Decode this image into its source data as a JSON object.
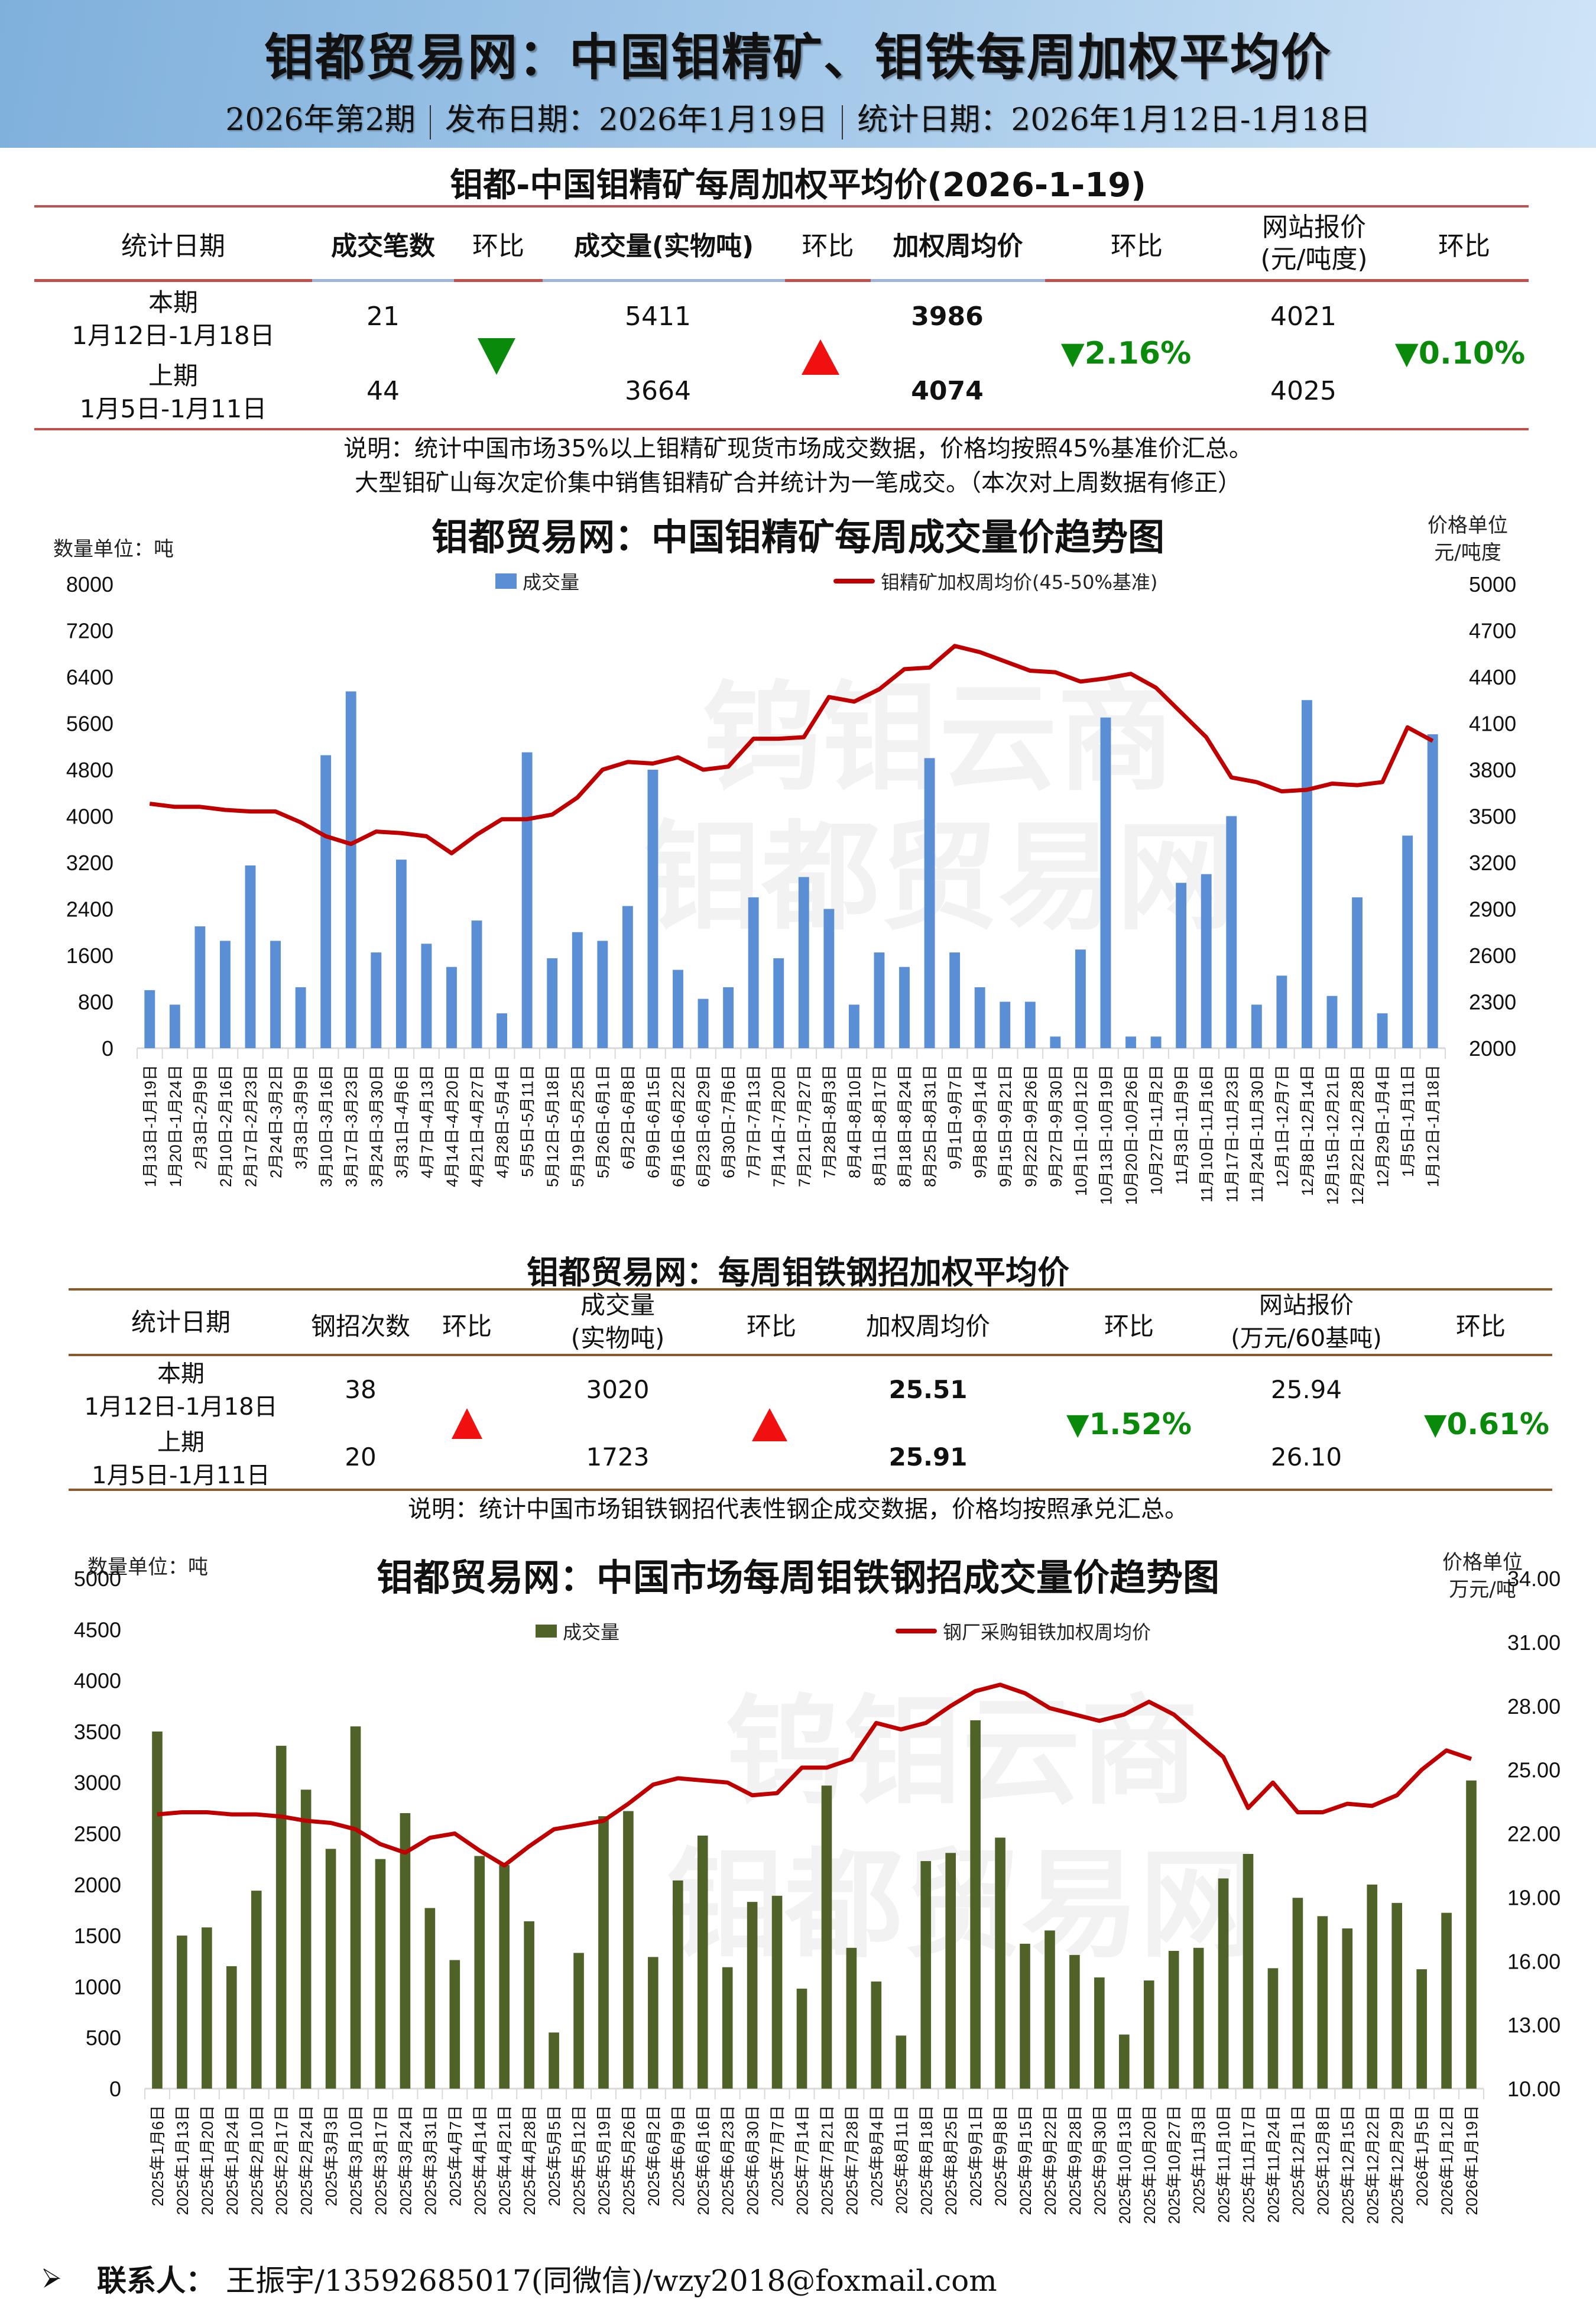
{
  "header": {
    "title": "钼都贸易网：中国钼精矿、钼铁每周加权平均价",
    "issue": "2026年第2期",
    "publish_date": "发布日期：2026年1月19日",
    "stat_date": "统计日期：2026年1月12日-1月18日"
  },
  "table1": {
    "title": "钼都-中国钼精矿每周加权平均价(2026-1-19)",
    "headers": [
      "统计日期",
      "成交笔数",
      "环比",
      "成交量(实物吨)",
      "环比",
      "加权周均价",
      "环比",
      "网站报价",
      "(元/吨度)",
      "环比"
    ],
    "current": {
      "label": "本期",
      "range": "1月12日-1月18日",
      "count": "21",
      "volume": "5411",
      "avg_price": "3986",
      "site_price": "4021"
    },
    "previous": {
      "label": "上期",
      "range": "1月5日-1月11日",
      "count": "44",
      "volume": "3664",
      "avg_price": "4074",
      "site_price": "4025"
    },
    "count_change": "down",
    "volume_change": "up",
    "price_change": "▼2.16%",
    "site_change": "▼0.10%",
    "note1": "说明：统计中国市场35%以上钼精矿现货市场成交数据，价格均按照45%基准价汇总。",
    "note2": "大型钼矿山每次定价集中销售钼精矿合并统计为一笔成交。（本次对上周数据有修正）"
  },
  "chart1": {
    "title": "钼都贸易网：中国钼精矿每周成交量价趋势图",
    "left_unit": "数量单位：吨",
    "right_unit_1": "价格单位",
    "right_unit_2": "元/吨度",
    "legend_bar": "成交量",
    "legend_line": "钼精矿加权周均价(45-50%基准)",
    "bar_color": "#5a8fd6",
    "line_color": "#c00000"
  },
  "table2": {
    "title": "钼都贸易网：每周钼铁钢招加权平均价",
    "headers": [
      "统计日期",
      "钢招次数",
      "环比",
      "成交量",
      "(实物吨)",
      "环比",
      "加权周均价",
      "环比",
      "网站报价",
      "(万元/60基吨)",
      "环比"
    ],
    "current": {
      "label": "本期",
      "range": "1月12日-1月18日",
      "count": "38",
      "volume": "3020",
      "avg_price": "25.51",
      "site_price": "25.94"
    },
    "previous": {
      "label": "上期",
      "range": "1月5日-1月11日",
      "count": "20",
      "volume": "1723",
      "avg_price": "25.91",
      "site_price": "26.10"
    },
    "count_change": "up",
    "volume_change": "up",
    "price_change": "▼1.52%",
    "site_change": "▼0.61%",
    "note": "说明：统计中国市场钼铁钢招代表性钢企成交数据，价格均按照承兑汇总。"
  },
  "chart2": {
    "title": "钼都贸易网：中国市场每周钼铁钢招成交量价趋势图",
    "left_unit": "数量单位：吨",
    "right_unit_1": "价格单位",
    "right_unit_2": "万元/吨",
    "legend_bar": "成交量",
    "legend_line": "钢厂采购钼铁加权周均价",
    "bar_color": "#4f6228",
    "line_color": "#c00000"
  },
  "footer": {
    "label": "联系人：",
    "contact": "王振宇/13592685017(同微信)/wzy2018@foxmail.com"
  },
  "chart_data": [
    {
      "type": "bar+line",
      "title": "钼都贸易网：中国钼精矿每周成交量价趋势图",
      "xlabel": "",
      "ylabel": "数量单位：吨",
      "y2label": "价格单位 元/吨度",
      "ylim": [
        0,
        8000
      ],
      "y2lim": [
        2000,
        5000
      ],
      "yticks": [
        0,
        800,
        1600,
        2400,
        3200,
        4000,
        4800,
        5600,
        6400,
        7200,
        8000
      ],
      "y2ticks": [
        2000,
        2300,
        2600,
        2900,
        3200,
        3500,
        3800,
        4100,
        4400,
        4700,
        5000
      ],
      "legend_position": "top",
      "categories": [
        "1月13日-1月19日",
        "1月20日-1月24日",
        "2月3日-2月9日",
        "2月10日-2月16日",
        "2月17日-2月23日",
        "2月24日-3月2日",
        "3月3日-3月9日",
        "3月10日-3月16日",
        "3月17日-3月23日",
        "3月24日-3月30日",
        "3月31日-4月6日",
        "4月7日-4月13日",
        "4月14日-4月20日",
        "4月21日-4月27日",
        "4月28日-5月4日",
        "5月5日-5月11日",
        "5月12日-5月18日",
        "5月19日-5月25日",
        "5月26日-6月1日",
        "6月2日-6月8日",
        "6月9日-6月15日",
        "6月16日-6月22日",
        "6月23日-6月29日",
        "6月30日-7月6日",
        "7月7日-7月13日",
        "7月14日-7月20日",
        "7月21日-7月27日",
        "7月28日-8月3日",
        "8月4日-8月10日",
        "8月11日-8月17日",
        "8月18日-8月24日",
        "8月25日-8月31日",
        "9月1日-9月7日",
        "9月8日-9月14日",
        "9月15日-9月21日",
        "9月22日-9月26日",
        "9月27日-9月30日",
        "10月1日-10月12日",
        "10月13日-10月19日",
        "10月20日-10月26日",
        "10月27日-11月2日",
        "11月3日-11月9日",
        "11月10日-11月16日",
        "11月17日-11月23日",
        "11月24日-11月30日",
        "12月1日-12月7日",
        "12月8日-12月14日",
        "12月15日-12月21日",
        "12月22日-12月28日",
        "12月29日-1月4日",
        "1月5日-1月11日",
        "1月12日-1月18日"
      ],
      "series": [
        {
          "name": "成交量",
          "type": "bar",
          "axis": "left",
          "values": [
            1000,
            750,
            2100,
            1850,
            3150,
            1850,
            1050,
            5050,
            6150,
            1650,
            3250,
            1800,
            1400,
            2200,
            600,
            5100,
            1550,
            2000,
            1850,
            2450,
            4800,
            1350,
            850,
            1050,
            2600,
            1550,
            2950,
            2400,
            750,
            1650,
            1400,
            5000,
            1650,
            1050,
            800,
            800,
            200,
            1700,
            5700,
            200,
            200,
            2850,
            3000,
            4000,
            750,
            1250,
            6000,
            900,
            2600,
            600,
            3664,
            5411
          ]
        },
        {
          "name": "钼精矿加权周均价(45-50%基准)",
          "type": "line",
          "axis": "right",
          "values": [
            3580,
            3560,
            3560,
            3540,
            3530,
            3530,
            3460,
            3370,
            3320,
            3400,
            3390,
            3370,
            3260,
            3380,
            3480,
            3480,
            3510,
            3620,
            3800,
            3850,
            3840,
            3880,
            3800,
            3820,
            4000,
            4000,
            4010,
            4270,
            4240,
            4320,
            4450,
            4460,
            4600,
            4560,
            4500,
            4440,
            4430,
            4370,
            4390,
            4420,
            4330,
            4170,
            4010,
            3750,
            3720,
            3660,
            3670,
            3710,
            3700,
            3720,
            4074,
            3986
          ]
        }
      ]
    },
    {
      "type": "bar+line",
      "title": "钼都贸易网：中国市场每周钼铁钢招成交量价趋势图",
      "xlabel": "",
      "ylabel": "数量单位：吨",
      "y2label": "价格单位 万元/吨",
      "ylim": [
        0,
        5000
      ],
      "y2lim": [
        10,
        34
      ],
      "yticks": [
        0,
        500,
        1000,
        1500,
        2000,
        2500,
        3000,
        3500,
        4000,
        4500,
        5000
      ],
      "y2ticks": [
        10,
        13,
        16,
        19,
        22,
        25,
        28,
        31,
        34
      ],
      "legend_position": "top",
      "categories": [
        "2025年1月6日",
        "2025年1月13日",
        "2025年1月20日",
        "2025年1月24日",
        "2025年2月10日",
        "2025年2月17日",
        "2025年2月24日",
        "2025年3月3日",
        "2025年3月10日",
        "2025年3月17日",
        "2025年3月24日",
        "2025年3月31日",
        "2025年4月7日",
        "2025年4月14日",
        "2025年4月21日",
        "2025年4月28日",
        "2025年5月5日",
        "2025年5月12日",
        "2025年5月19日",
        "2025年5月26日",
        "2025年6月2日",
        "2025年6月9日",
        "2025年6月16日",
        "2025年6月23日",
        "2025年6月30日",
        "2025年7月7日",
        "2025年7月14日",
        "2025年7月21日",
        "2025年7月28日",
        "2025年8月4日",
        "2025年8月11日",
        "2025年8月18日",
        "2025年8月25日",
        "2025年9月1日",
        "2025年9月8日",
        "2025年9月15日",
        "2025年9月22日",
        "2025年9月28日",
        "2025年9月30日",
        "2025年10月13日",
        "2025年10月20日",
        "2025年10月27日",
        "2025年11月3日",
        "2025年11月10日",
        "2025年11月17日",
        "2025年11月24日",
        "2025年12月1日",
        "2025年12月8日",
        "2025年12月15日",
        "2025年12月22日",
        "2025年12月29日",
        "2026年1月5日",
        "2026年1月12日",
        "2026年1月19日"
      ],
      "series": [
        {
          "name": "成交量",
          "type": "bar",
          "axis": "left",
          "values": [
            3500,
            1500,
            1580,
            1200,
            1940,
            3360,
            2930,
            2350,
            3550,
            2250,
            2700,
            1770,
            1260,
            2280,
            2190,
            1640,
            550,
            1330,
            2670,
            2720,
            1290,
            2040,
            2480,
            1190,
            1830,
            1890,
            980,
            2970,
            1380,
            1050,
            520,
            2230,
            2310,
            3610,
            2460,
            1420,
            1550,
            1310,
            1090,
            530,
            1060,
            1350,
            1380,
            2060,
            2300,
            1180,
            1870,
            1690,
            1570,
            2000,
            1820,
            1170,
            1723,
            3020
          ]
        },
        {
          "name": "钢厂采购钼铁加权周均价",
          "type": "line",
          "axis": "right",
          "values": [
            22.9,
            23.0,
            23.0,
            22.9,
            22.9,
            22.8,
            22.6,
            22.5,
            22.2,
            21.5,
            21.1,
            21.8,
            22.0,
            21.2,
            20.5,
            21.4,
            22.2,
            22.4,
            22.6,
            23.4,
            24.3,
            24.6,
            24.5,
            24.4,
            23.8,
            23.9,
            25.1,
            25.1,
            25.5,
            27.2,
            26.9,
            27.2,
            28.0,
            28.7,
            29.0,
            28.6,
            27.9,
            27.6,
            27.3,
            27.6,
            28.2,
            27.6,
            26.6,
            25.6,
            23.2,
            24.4,
            23.0,
            23.0,
            23.4,
            23.3,
            23.8,
            25.0,
            25.91,
            25.51
          ]
        }
      ]
    }
  ]
}
